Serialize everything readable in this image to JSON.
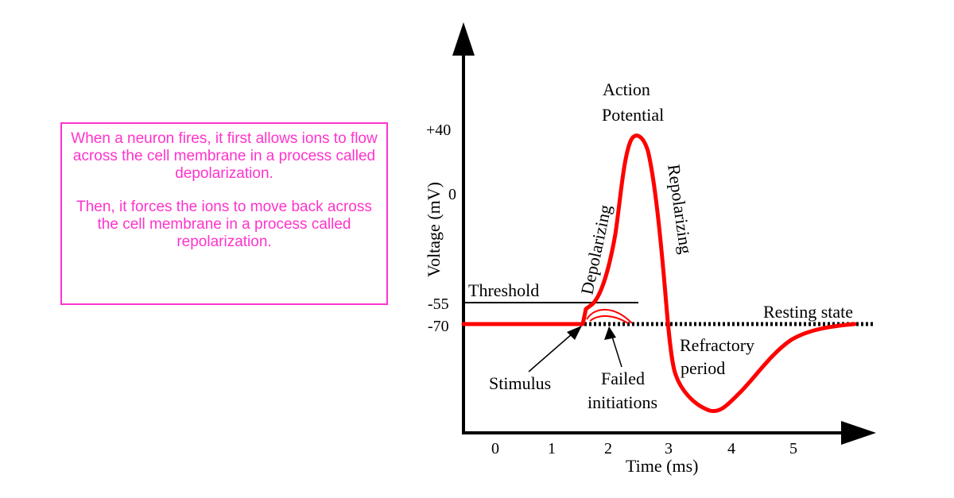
{
  "info_box": {
    "paragraph_1": "When a neuron fires, it first allows ions to flow across the cell membrane in a process called depolarization.",
    "paragraph_2": "Then, it forces the ions to move back across the cell membrane in a process called repolarization."
  },
  "axis": {
    "y_label": "Voltage (mV)",
    "x_label": "Time (ms)",
    "y_ticks": [
      "+40",
      "0",
      "-55",
      "-70"
    ],
    "x_ticks": [
      "0",
      "1",
      "2",
      "3",
      "4",
      "5"
    ]
  },
  "labels": {
    "action_potential_line1": "Action",
    "action_potential_line2": "Potential",
    "depolarizing": "Depolarizing",
    "repolarizing": "Repolarizing",
    "threshold": "Threshold",
    "resting_state": "Resting state",
    "refractory_line1": "Refractory",
    "refractory_line2": "period",
    "stimulus": "Stimulus",
    "failed_line1": "Failed",
    "failed_line2": "initiations"
  },
  "colors": {
    "curve": "#ff0000",
    "text_box": "#ff33cc",
    "axis": "#000000"
  }
}
